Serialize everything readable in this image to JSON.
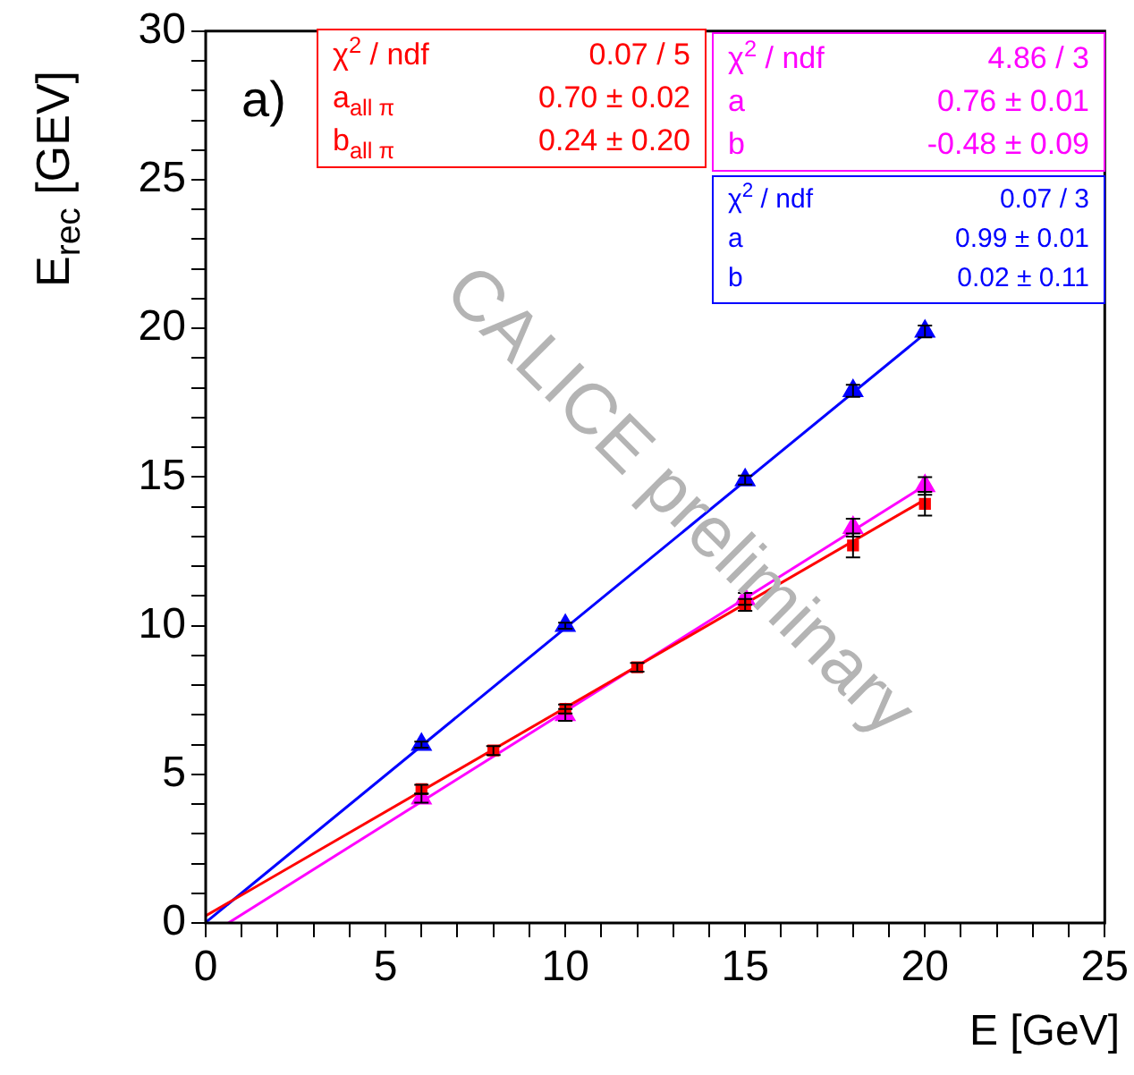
{
  "chart_data": {
    "type": "scatter",
    "xlabel": "E [GeV]",
    "ylabel": "E$_{rec}$ [GEV]",
    "xlim": [
      0,
      25
    ],
    "ylim": [
      0,
      30
    ],
    "xticks": [
      0,
      {
        "value": 1,
        "label": null
      },
      {
        "value": 2,
        "label": null
      },
      {
        "value": 3,
        "label": null
      },
      {
        "value": 4,
        "label": null
      },
      5,
      {
        "value": 6,
        "label": null
      },
      {
        "value": 7,
        "label": null
      },
      {
        "value": 8,
        "label": null
      },
      {
        "value": 9,
        "label": null
      },
      10,
      {
        "value": 11,
        "label": null
      },
      {
        "value": 12,
        "label": null
      },
      {
        "value": 13,
        "label": null
      },
      {
        "value": 14,
        "label": null
      },
      15,
      {
        "value": 16,
        "label": null
      },
      {
        "value": 17,
        "label": null
      },
      {
        "value": 18,
        "label": null
      },
      {
        "value": 19,
        "label": null
      },
      20,
      {
        "value": 21,
        "label": null
      },
      {
        "value": 22,
        "label": null
      },
      {
        "value": 23,
        "label": null
      },
      {
        "value": 24,
        "label": null
      },
      25
    ],
    "yticks": [
      0,
      {
        "value": 1,
        "label": null
      },
      {
        "value": 2,
        "label": null
      },
      {
        "value": 3,
        "label": null
      },
      {
        "value": 4,
        "label": null
      },
      5,
      {
        "value": 6,
        "label": null
      },
      {
        "value": 7,
        "label": null
      },
      {
        "value": 8,
        "label": null
      },
      {
        "value": 9,
        "label": null
      },
      10,
      {
        "value": 11,
        "label": null
      },
      {
        "value": 12,
        "label": null
      },
      {
        "value": 13,
        "label": null
      },
      {
        "value": 14,
        "label": null
      },
      15,
      {
        "value": 16,
        "label": null
      },
      {
        "value": 17,
        "label": null
      },
      {
        "value": 18,
        "label": null
      },
      {
        "value": 19,
        "label": null
      },
      20,
      {
        "value": 21,
        "label": null
      },
      {
        "value": 22,
        "label": null
      },
      {
        "value": 23,
        "label": null
      },
      {
        "value": 24,
        "label": null
      },
      25,
      {
        "value": 26,
        "label": null
      },
      {
        "value": 27,
        "label": null
      },
      {
        "value": 28,
        "label": null
      },
      {
        "value": 29,
        "label": null
      },
      30
    ],
    "grid": false,
    "legend": false,
    "series": [
      {
        "marker": "square",
        "color": "#ff0000",
        "x": [
          6,
          8,
          10,
          12,
          15,
          18,
          20
        ],
        "values": [
          4.5,
          5.8,
          7.2,
          8.6,
          10.7,
          12.7,
          14.1
        ],
        "errors": [
          0.15,
          0.15,
          0.15,
          0.15,
          0.2,
          0.4,
          0.4
        ]
      },
      {
        "marker": "triangle",
        "color": "#ff00ff",
        "x": [
          6,
          10,
          15,
          18,
          20
        ],
        "values": [
          4.2,
          7.0,
          10.9,
          13.3,
          14.7
        ],
        "errors": [
          0.15,
          0.2,
          0.2,
          0.3,
          0.3
        ]
      },
      {
        "marker": "triangle",
        "color": "#0000ff",
        "x": [
          6,
          10,
          15,
          18,
          20
        ],
        "values": [
          6.0,
          10.0,
          14.9,
          17.9,
          19.9
        ],
        "errors": [
          0.1,
          0.1,
          0.15,
          0.2,
          0.2
        ]
      },
      {
        "type": "line",
        "color": "#ff0000",
        "x": [
          0,
          20
        ],
        "values": [
          0.24,
          14.24
        ]
      },
      {
        "type": "line",
        "color": "#ff00ff",
        "x": [
          0.63,
          20
        ],
        "values": [
          0,
          14.72
        ]
      },
      {
        "type": "line",
        "color": "#0000ff",
        "x": [
          0,
          20
        ],
        "values": [
          0.02,
          19.82
        ]
      }
    ],
    "annotations": [
      "a)",
      "CALICE preliminary",
      "χ$^{2}$ / ndf",
      "0.07 / 5",
      "a$_{all π}$",
      "0.70 ± 0.02",
      "b$_{all π}$",
      "0.24 ± 0.20",
      "χ$^{2}$ / ndf",
      "4.86 / 3",
      "a",
      "0.76 ± 0.01",
      "b",
      "-0.48 ± 0.09",
      "χ$^{2}$ / ndf",
      "0.07 / 3",
      "a",
      "0.99 ± 0.01",
      "b",
      "0.02 ± 0.11"
    ]
  }
}
